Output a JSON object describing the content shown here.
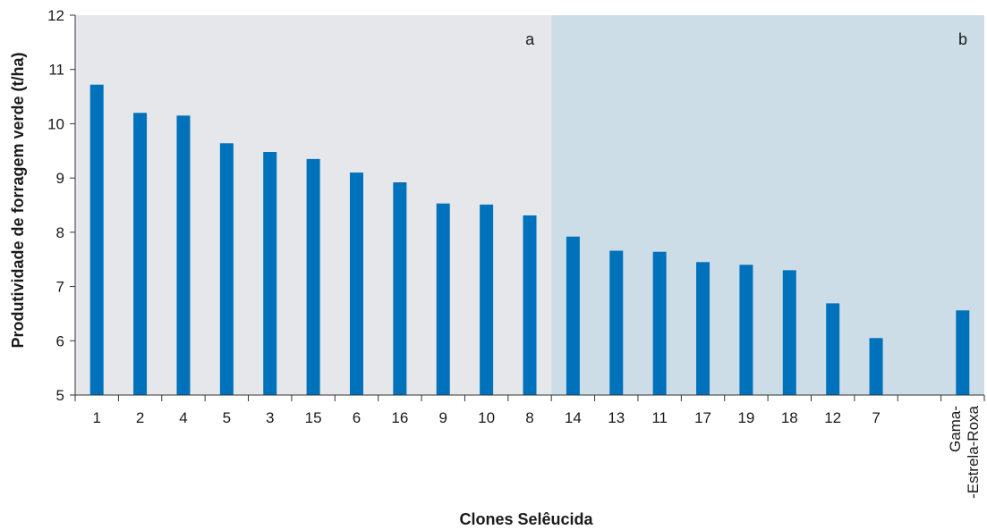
{
  "chart_data": {
    "type": "bar",
    "categories": [
      "1",
      "2",
      "4",
      "5",
      "3",
      "15",
      "6",
      "16",
      "9",
      "10",
      "8",
      "14",
      "13",
      "11",
      "17",
      "19",
      "18",
      "12",
      "7",
      "",
      "Gama-\n-Estrela-Roxa"
    ],
    "values": [
      10.72,
      10.2,
      10.15,
      9.64,
      9.48,
      9.35,
      9.1,
      8.92,
      8.53,
      8.51,
      8.31,
      7.92,
      7.66,
      7.64,
      7.45,
      7.4,
      7.3,
      6.69,
      6.05,
      null,
      6.56
    ],
    "xlabel": "Clones Selêucida",
    "ylabel": "Produtividade de forragem verde (t/ha)",
    "ylim": [
      5,
      12
    ],
    "yticks": [
      5,
      6,
      7,
      8,
      9,
      10,
      11,
      12
    ],
    "grid": false,
    "bar_color": "#0072bc",
    "regions": [
      {
        "label": "a",
        "from_index": 0,
        "to_index": 10,
        "color": "#e5e7ea"
      },
      {
        "label": "b",
        "from_index": 11,
        "to_index": 20,
        "color": "#ccdde8"
      }
    ]
  }
}
